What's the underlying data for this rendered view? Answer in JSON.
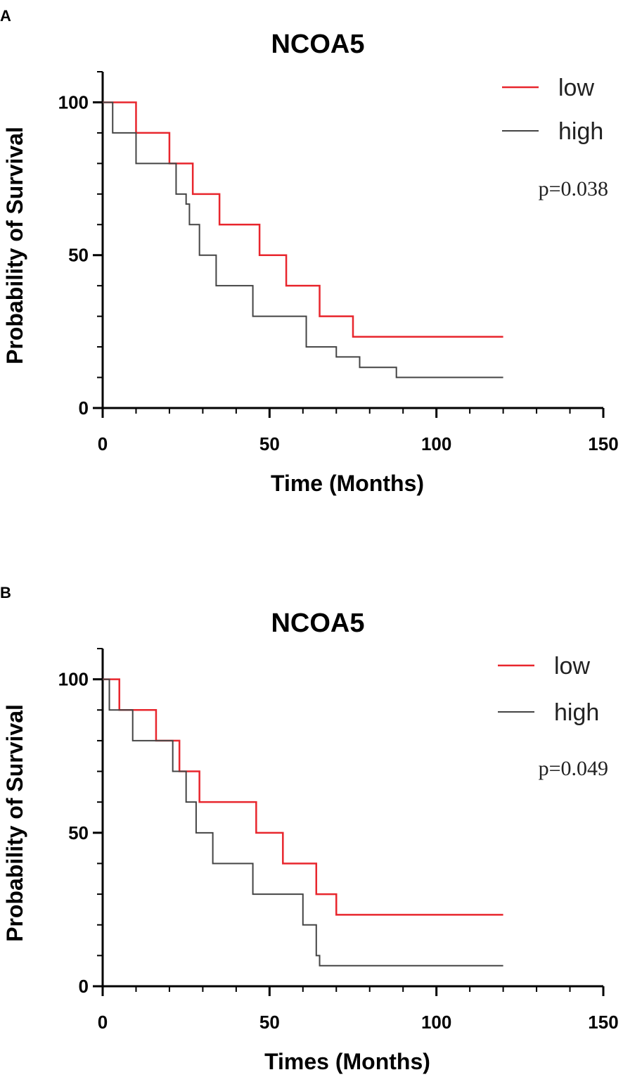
{
  "chart_data": [
    {
      "panel_label": "A",
      "type": "line",
      "subtype": "kaplan-meier-step",
      "title": "NCOA5",
      "xlabel": "Time (Months)",
      "ylabel": "Probability of Survival",
      "xlim": [
        0,
        150
      ],
      "ylim": [
        0,
        110
      ],
      "xticks": [
        0,
        50,
        100,
        150
      ],
      "yticks": [
        0,
        50,
        100
      ],
      "x_minor_step": 10,
      "y_minor_step": 10,
      "legend": "top-right",
      "p_value": "p=0.038",
      "series": [
        {
          "name": "low",
          "color": "#e8262d",
          "x": [
            0,
            10,
            20,
            27,
            35,
            47,
            55,
            65,
            75,
            120
          ],
          "y": [
            100,
            90,
            80,
            70,
            60,
            50,
            40,
            30,
            23.3,
            23.3
          ]
        },
        {
          "name": "high",
          "color": "#444444",
          "x": [
            0,
            3,
            10,
            22,
            25,
            26,
            29,
            34,
            45,
            61,
            70,
            77,
            88,
            120
          ],
          "y": [
            100,
            90,
            80,
            70,
            66.7,
            60,
            50,
            40,
            30,
            20,
            16.7,
            13.3,
            10,
            10
          ]
        }
      ]
    },
    {
      "panel_label": "B",
      "type": "line",
      "subtype": "kaplan-meier-step",
      "title": "NCOA5",
      "xlabel": "Times (Months)",
      "ylabel": "Probability of Survival",
      "xlim": [
        0,
        150
      ],
      "ylim": [
        0,
        110
      ],
      "xticks": [
        0,
        50,
        100,
        150
      ],
      "yticks": [
        0,
        50,
        100
      ],
      "x_minor_step": 10,
      "y_minor_step": 10,
      "legend": "top-right",
      "p_value": "p=0.049",
      "series": [
        {
          "name": "low",
          "color": "#e8262d",
          "x": [
            0,
            5,
            16,
            23,
            29,
            46,
            54,
            64,
            70,
            120
          ],
          "y": [
            100,
            90,
            80,
            70,
            60,
            50,
            40,
            30,
            23.3,
            23.3
          ]
        },
        {
          "name": "high",
          "color": "#444444",
          "x": [
            0,
            2,
            9,
            21,
            25,
            28,
            33,
            45,
            60,
            64,
            65,
            120
          ],
          "y": [
            100,
            90,
            80,
            70,
            60,
            50,
            40,
            30,
            20,
            10,
            6.7,
            6.7
          ]
        }
      ]
    }
  ]
}
